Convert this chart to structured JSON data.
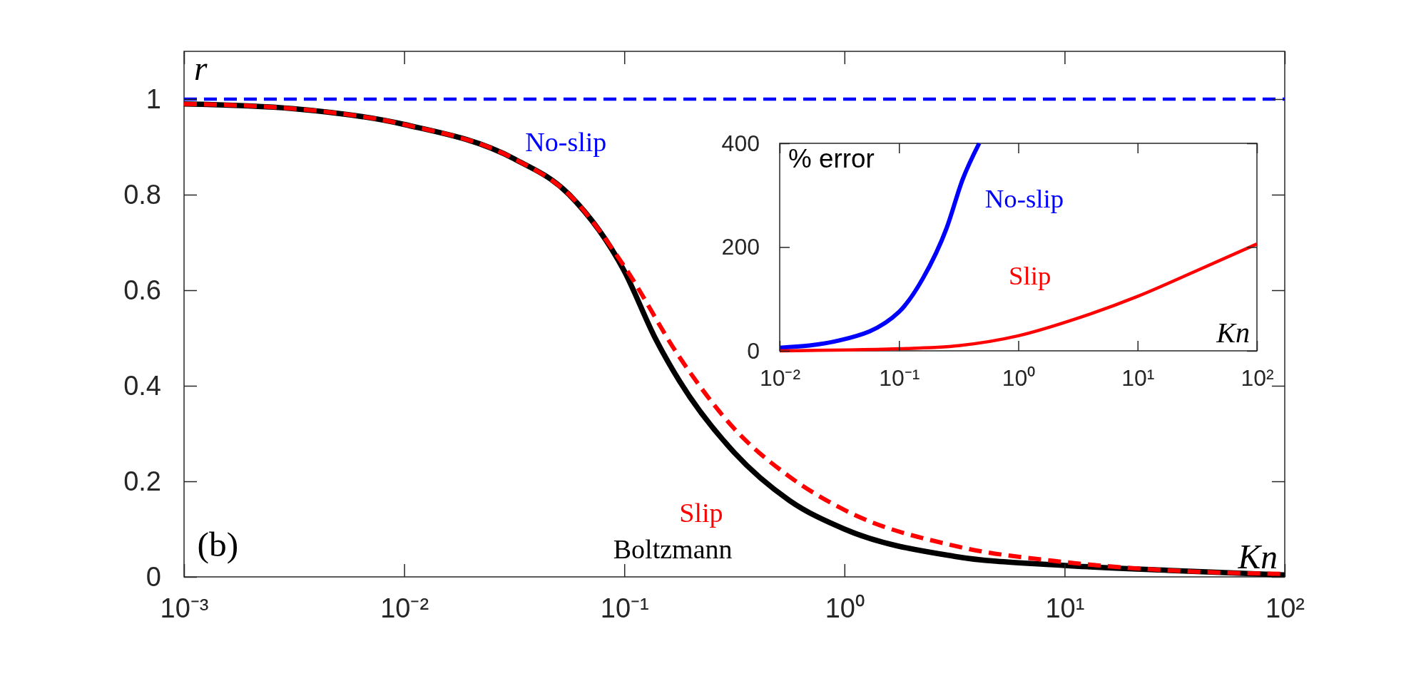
{
  "chart_data": [
    {
      "type": "line",
      "xlabel": "Kn",
      "ylabel": "r",
      "log": "x",
      "xlim": [
        0.001,
        100
      ],
      "ylim": [
        0,
        1.1
      ],
      "xticks": [
        {
          "value": 0.001,
          "label": "10⁻³"
        },
        {
          "value": 0.01,
          "label": "10⁻²"
        },
        {
          "value": 0.1,
          "label": "10⁻¹"
        },
        {
          "value": 1,
          "label": "10⁰"
        },
        {
          "value": 10,
          "label": "10¹"
        },
        {
          "value": 100,
          "label": "10²"
        }
      ],
      "yticks": [
        0,
        0.2,
        0.4,
        0.6,
        0.8,
        1
      ],
      "annotations": [
        "(b)"
      ],
      "series": [
        {
          "name": "Boltzmann",
          "color": "#000000",
          "line_style": "solid",
          "x": [
            0.001,
            0.00316,
            0.01,
            0.0316,
            0.0562,
            0.1,
            0.138,
            0.178,
            0.316,
            0.562,
            1,
            3.16,
            10,
            31.6,
            100
          ],
          "values": [
            0.99,
            0.98,
            0.947,
            0.875,
            0.8,
            0.64,
            0.5,
            0.41,
            0.26,
            0.16,
            0.1,
            0.043,
            0.024,
            0.013,
            0.004
          ]
        },
        {
          "name": "Slip",
          "color": "#ff0000",
          "line_style": "dashed",
          "x": [
            0.001,
            0.00316,
            0.01,
            0.0316,
            0.0562,
            0.1,
            0.178,
            0.316,
            0.562,
            1,
            3.16,
            10,
            31.6,
            100
          ],
          "values": [
            0.99,
            0.98,
            0.947,
            0.875,
            0.8,
            0.65,
            0.46,
            0.31,
            0.21,
            0.14,
            0.065,
            0.031,
            0.013,
            0.006
          ]
        },
        {
          "name": "No-slip",
          "color": "#0000ff",
          "line_style": "dashed",
          "x": [
            0.001,
            100
          ],
          "values": [
            1,
            1
          ]
        }
      ]
    },
    {
      "type": "line",
      "xlabel": "Kn",
      "ylabel": "% error",
      "log": "x",
      "xlim": [
        0.01,
        100
      ],
      "ylim": [
        0,
        400
      ],
      "xticks": [
        {
          "value": 0.01,
          "label": "10⁻²"
        },
        {
          "value": 0.1,
          "label": "10⁻¹"
        },
        {
          "value": 1,
          "label": "10⁰"
        },
        {
          "value": 10,
          "label": "10¹"
        },
        {
          "value": 100,
          "label": "10²"
        }
      ],
      "yticks": [
        0,
        200,
        400
      ],
      "series": [
        {
          "name": "No-slip",
          "color": "#0000ff",
          "line_style": "solid",
          "x": [
            0.01,
            0.0316,
            0.1,
            0.158,
            0.251,
            0.341,
            0.47
          ],
          "values": [
            6,
            20,
            75,
            139,
            237,
            330,
            400
          ]
        },
        {
          "name": "Slip",
          "color": "#ff0000",
          "line_style": "solid",
          "x": [
            0.01,
            0.1,
            0.316,
            1,
            3.16,
            10,
            31.6,
            100
          ],
          "values": [
            0,
            4,
            10,
            29,
            63,
            105,
            155,
            206
          ]
        }
      ]
    }
  ]
}
